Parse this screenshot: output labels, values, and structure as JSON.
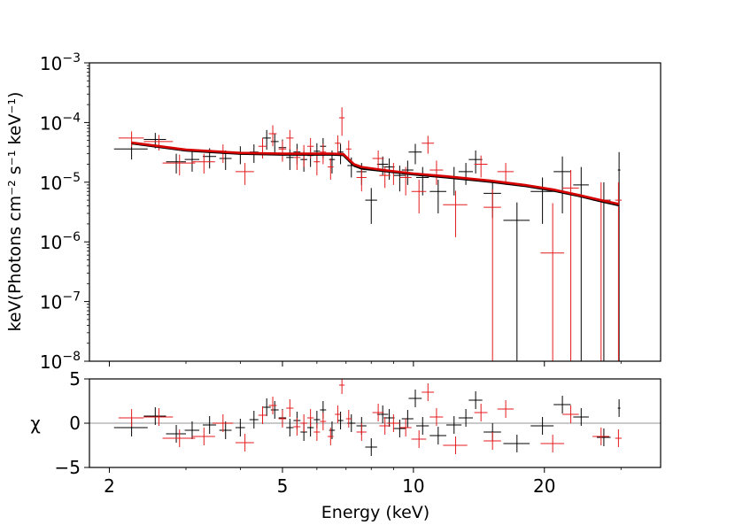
{
  "chart_data": [
    {
      "panel": "spectrum",
      "type": "scatter",
      "xscale": "log",
      "yscale": "log",
      "xlim": [
        1.8,
        37
      ],
      "ylim": [
        1e-08,
        0.001
      ],
      "ylabel": "keV(Photons cm⁻² s⁻¹ keV⁻¹)",
      "ytick_labels": [
        {
          "value": 1e-08,
          "base": "10",
          "exp": "−8"
        },
        {
          "value": 1e-07,
          "base": "10",
          "exp": "−7"
        },
        {
          "value": 1e-06,
          "base": "10",
          "exp": "−6"
        },
        {
          "value": 1e-05,
          "base": "10",
          "exp": "−5"
        },
        {
          "value": 0.0001,
          "base": "10",
          "exp": "−4"
        },
        {
          "value": 0.001,
          "base": "10",
          "exp": "−3"
        }
      ],
      "series": [
        {
          "name": "data-black",
          "color": "#000000",
          "points": [
            [
              2.25,
              3.6e-05,
              0.2,
              1.2e-05
            ],
            [
              2.55,
              5.2e-05,
              0.15,
              1.5e-05
            ],
            [
              2.85,
              2.2e-05,
              0.15,
              8e-06
            ],
            [
              3.1,
              2.4e-05,
              0.12,
              9e-06
            ],
            [
              3.4,
              2.7e-05,
              0.12,
              1e-05
            ],
            [
              3.7,
              2.5e-05,
              0.12,
              9e-06
            ],
            [
              4.0,
              3e-05,
              0.1,
              1e-05
            ],
            [
              4.3,
              3.2e-05,
              0.1,
              1.1e-05
            ],
            [
              4.6,
              5.5e-05,
              0.1,
              2e-05
            ],
            [
              4.8,
              4.8e-05,
              0.1,
              1.8e-05
            ],
            [
              5.0,
              3.8e-05,
              0.1,
              1.4e-05
            ],
            [
              5.2,
              2.6e-05,
              0.1,
              1e-05
            ],
            [
              5.4,
              3.2e-05,
              0.1,
              1.2e-05
            ],
            [
              5.6,
              2.4e-05,
              0.1,
              9e-06
            ],
            [
              5.8,
              2.8e-05,
              0.1,
              1e-05
            ],
            [
              6.0,
              3.3e-05,
              0.1,
              1.2e-05
            ],
            [
              6.2,
              4e-05,
              0.1,
              1.5e-05
            ],
            [
              6.5,
              2.4e-05,
              0.1,
              1e-05
            ],
            [
              6.8,
              3.2e-05,
              0.1,
              1.2e-05
            ],
            [
              7.2,
              1.9e-05,
              0.15,
              7e-06
            ],
            [
              7.6,
              1.5e-05,
              0.2,
              6e-06
            ],
            [
              8.0,
              5e-06,
              0.25,
              3e-06
            ],
            [
              8.5,
              2e-05,
              0.25,
              7e-06
            ],
            [
              8.8,
              1.8e-05,
              0.25,
              7e-06
            ],
            [
              9.3,
              1.3e-05,
              0.3,
              6e-06
            ],
            [
              9.7,
              1.6e-05,
              0.3,
              7e-06
            ],
            [
              10.1,
              3.2e-05,
              0.35,
              1.2e-05
            ],
            [
              10.5,
              1.2e-05,
              0.35,
              6e-06
            ],
            [
              11.4,
              7e-06,
              0.5,
              4e-06
            ],
            [
              12.4,
              1.2e-05,
              0.5,
              6e-06
            ],
            [
              13.2,
              1.5e-05,
              0.5,
              6e-06
            ],
            [
              13.9,
              2.4e-05,
              0.5,
              1e-05
            ],
            [
              15.2,
              6.5e-06,
              0.7,
              4e-06
            ],
            [
              17.3,
              2.3e-06,
              1.2,
              2.29e-06
            ],
            [
              19.8,
              7e-06,
              1.2,
              5e-06
            ],
            [
              22.0,
              1.5e-05,
              1.0,
              1.2e-05
            ],
            [
              24.3,
              9e-06,
              1.0,
              8.99e-06
            ],
            [
              27.4,
              5e-06,
              1.0,
              4.99e-06
            ],
            [
              29.7,
              1.6e-05,
              0.2,
              1.6e-05
            ]
          ]
        },
        {
          "name": "data-red",
          "color": "#e41a1c",
          "points": [
            [
              2.25,
              5.5e-05,
              0.15,
              1.6e-05
            ],
            [
              2.6,
              4.8e-05,
              0.2,
              1.4e-05
            ],
            [
              2.9,
              2.1e-05,
              0.25,
              8e-06
            ],
            [
              3.3,
              2.2e-05,
              0.2,
              8e-06
            ],
            [
              3.65,
              3.2e-05,
              0.2,
              1.1e-05
            ],
            [
              4.1,
              1.5e-05,
              0.2,
              6e-06
            ],
            [
              4.5,
              4e-05,
              0.1,
              1.5e-05
            ],
            [
              4.75,
              6.5e-05,
              0.1,
              2.5e-05
            ],
            [
              5.0,
              3.6e-05,
              0.1,
              1.4e-05
            ],
            [
              5.2,
              5.5e-05,
              0.1,
              2e-05
            ],
            [
              5.4,
              2.6e-05,
              0.1,
              1e-05
            ],
            [
              5.6,
              3e-05,
              0.1,
              1.2e-05
            ],
            [
              5.8,
              4e-05,
              0.1,
              1.5e-05
            ],
            [
              6.0,
              2.2e-05,
              0.1,
              9e-06
            ],
            [
              6.2,
              3.2e-05,
              0.1,
              1.2e-05
            ],
            [
              6.45,
              1.8e-05,
              0.1,
              7e-06
            ],
            [
              6.7,
              4.5e-05,
              0.1,
              1.6e-05
            ],
            [
              6.85,
              0.00012,
              0.1,
              6e-05
            ],
            [
              7.1,
              3.6e-05,
              0.1,
              1.4e-05
            ],
            [
              7.6,
              1.2e-05,
              0.2,
              5e-06
            ],
            [
              8.3,
              2.5e-05,
              0.25,
              9e-06
            ],
            [
              8.6,
              1.3e-05,
              0.25,
              5e-06
            ],
            [
              9.0,
              1.5e-05,
              0.3,
              6e-06
            ],
            [
              9.6,
              1.2e-05,
              0.3,
              6e-06
            ],
            [
              10.3,
              7e-06,
              0.4,
              4e-06
            ],
            [
              10.8,
              4.5e-05,
              0.35,
              1.5e-05
            ],
            [
              11.3,
              1.6e-05,
              0.4,
              7e-06
            ],
            [
              12.5,
              4.2e-06,
              0.8,
              3e-06
            ],
            [
              14.3,
              2e-05,
              0.5,
              8e-06
            ],
            [
              15.2,
              3.8e-06,
              0.7,
              3.79e-06
            ],
            [
              16.3,
              1.5e-05,
              0.7,
              6e-06
            ],
            [
              20.9,
              6.5e-07,
              1.3,
              3.8e-06
            ],
            [
              23.0,
              8e-06,
              1.0,
              7.99e-06
            ],
            [
              27.0,
              5e-06,
              1.2,
              4.99e-06
            ],
            [
              29.6,
              5e-06,
              0.5,
              4.99e-06
            ]
          ]
        }
      ],
      "model_lines": [
        {
          "name": "model-black",
          "color": "#000000",
          "points": [
            [
              2.25,
              4.5e-05
            ],
            [
              3.0,
              3.4e-05
            ],
            [
              4.0,
              3e-05
            ],
            [
              5.0,
              2.9e-05
            ],
            [
              6.0,
              2.9e-05
            ],
            [
              6.5,
              2.9e-05
            ],
            [
              6.9,
              2.85e-05
            ],
            [
              7.3,
              1.9e-05
            ],
            [
              7.6,
              1.7e-05
            ],
            [
              8.5,
              1.55e-05
            ],
            [
              10.0,
              1.35e-05
            ],
            [
              12.0,
              1.2e-05
            ],
            [
              15.0,
              1.02e-05
            ],
            [
              18.0,
              8.7e-06
            ],
            [
              21.0,
              7.2e-06
            ],
            [
              24.0,
              5.9e-06
            ],
            [
              27.0,
              4.8e-06
            ],
            [
              29.7,
              4.1e-06
            ]
          ]
        },
        {
          "name": "model-red",
          "color": "#d70000",
          "points": [
            [
              2.25,
              4.6e-05
            ],
            [
              3.0,
              3.5e-05
            ],
            [
              4.0,
              3.1e-05
            ],
            [
              5.0,
              3e-05
            ],
            [
              6.0,
              3e-05
            ],
            [
              6.5,
              3e-05
            ],
            [
              6.9,
              2.95e-05
            ],
            [
              7.3,
              2e-05
            ],
            [
              7.6,
              1.8e-05
            ],
            [
              8.5,
              1.6e-05
            ],
            [
              10.0,
              1.4e-05
            ],
            [
              12.0,
              1.25e-05
            ],
            [
              15.0,
              1.06e-05
            ],
            [
              18.0,
              9e-06
            ],
            [
              21.0,
              7.5e-06
            ],
            [
              24.0,
              6.1e-06
            ],
            [
              27.0,
              5e-06
            ],
            [
              29.7,
              4.3e-06
            ]
          ]
        }
      ]
    },
    {
      "panel": "residuals",
      "type": "scatter",
      "xscale": "log",
      "xlim": [
        1.8,
        37
      ],
      "ylim": [
        -5,
        5
      ],
      "ylabel": "χ",
      "xlabel": "Energy (keV)",
      "yticks": [
        -5,
        0,
        5
      ],
      "ytick_labels": [
        "−5",
        "0",
        "5"
      ],
      "xticks": [
        2,
        5,
        10,
        20
      ],
      "xtick_labels": [
        "2",
        "5",
        "10",
        "20"
      ],
      "zero_line_color": "#a9a9a9",
      "series": [
        {
          "name": "resid-black",
          "color": "#000000",
          "points": [
            [
              2.25,
              -0.5,
              0.2
            ],
            [
              2.55,
              0.8,
              0.15
            ],
            [
              2.85,
              -1.2,
              0.15
            ],
            [
              3.1,
              -0.8,
              0.12
            ],
            [
              3.4,
              -0.2,
              0.12
            ],
            [
              3.7,
              -0.8,
              0.12
            ],
            [
              4.0,
              -0.5,
              0.1
            ],
            [
              4.3,
              0.4,
              0.1
            ],
            [
              4.6,
              1.8,
              0.1
            ],
            [
              4.8,
              1.5,
              0.1
            ],
            [
              5.0,
              0.6,
              0.1
            ],
            [
              5.2,
              -0.5,
              0.1
            ],
            [
              5.4,
              0.3,
              0.1
            ],
            [
              5.6,
              -1.0,
              0.1
            ],
            [
              5.8,
              -0.5,
              0.1
            ],
            [
              6.0,
              0.4,
              0.1
            ],
            [
              6.2,
              1.5,
              0.1
            ],
            [
              6.5,
              -0.8,
              0.1
            ],
            [
              6.8,
              0.3,
              0.1
            ],
            [
              7.2,
              0.0,
              0.15
            ],
            [
              7.6,
              -0.3,
              0.2
            ],
            [
              8.0,
              -2.7,
              0.25
            ],
            [
              8.5,
              1.0,
              0.25
            ],
            [
              8.8,
              0.6,
              0.25
            ],
            [
              9.3,
              -0.6,
              0.3
            ],
            [
              9.7,
              0.5,
              0.3
            ],
            [
              10.1,
              2.8,
              0.35
            ],
            [
              10.5,
              -0.3,
              0.35
            ],
            [
              11.4,
              -1.4,
              0.5
            ],
            [
              12.4,
              -0.2,
              0.5
            ],
            [
              13.2,
              0.6,
              0.5
            ],
            [
              13.9,
              2.6,
              0.5
            ],
            [
              15.2,
              -1.0,
              0.7
            ],
            [
              17.3,
              -2.3,
              1.2
            ],
            [
              19.8,
              -0.3,
              1.2
            ],
            [
              22.0,
              2.1,
              1.0
            ],
            [
              24.3,
              0.7,
              1.0
            ],
            [
              27.4,
              -1.6,
              1.0
            ],
            [
              29.7,
              1.7,
              0.2
            ]
          ]
        },
        {
          "name": "resid-red",
          "color": "#e41a1c",
          "points": [
            [
              2.25,
              0.6,
              0.15
            ],
            [
              2.6,
              0.7,
              0.2
            ],
            [
              2.9,
              -1.7,
              0.25
            ],
            [
              3.3,
              -1.5,
              0.2
            ],
            [
              3.65,
              0.0,
              0.2
            ],
            [
              4.1,
              -2.2,
              0.2
            ],
            [
              4.5,
              0.9,
              0.1
            ],
            [
              4.75,
              2.0,
              0.1
            ],
            [
              5.0,
              0.5,
              0.1
            ],
            [
              5.2,
              1.7,
              0.1
            ],
            [
              5.4,
              -0.4,
              0.1
            ],
            [
              5.6,
              0.0,
              0.1
            ],
            [
              5.8,
              0.6,
              0.1
            ],
            [
              6.0,
              -1.0,
              0.1
            ],
            [
              6.2,
              0.2,
              0.1
            ],
            [
              6.45,
              -1.5,
              0.1
            ],
            [
              6.7,
              1.0,
              0.1
            ],
            [
              6.85,
              4.3,
              0.1
            ],
            [
              7.1,
              0.5,
              0.1
            ],
            [
              7.6,
              -1.0,
              0.2
            ],
            [
              8.3,
              1.2,
              0.25
            ],
            [
              8.6,
              -0.3,
              0.25
            ],
            [
              9.0,
              0.0,
              0.3
            ],
            [
              9.6,
              -0.5,
              0.3
            ],
            [
              10.3,
              -1.8,
              0.4
            ],
            [
              10.8,
              3.5,
              0.35
            ],
            [
              11.3,
              0.7,
              0.4
            ],
            [
              12.5,
              -2.5,
              0.8
            ],
            [
              14.3,
              1.2,
              0.5
            ],
            [
              15.2,
              -2.0,
              0.7
            ],
            [
              16.3,
              1.6,
              0.7
            ],
            [
              20.9,
              -2.3,
              1.3
            ],
            [
              23.0,
              1.0,
              1.0
            ],
            [
              27.0,
              -1.5,
              1.2
            ],
            [
              29.6,
              -1.7,
              0.5
            ]
          ]
        }
      ]
    }
  ]
}
